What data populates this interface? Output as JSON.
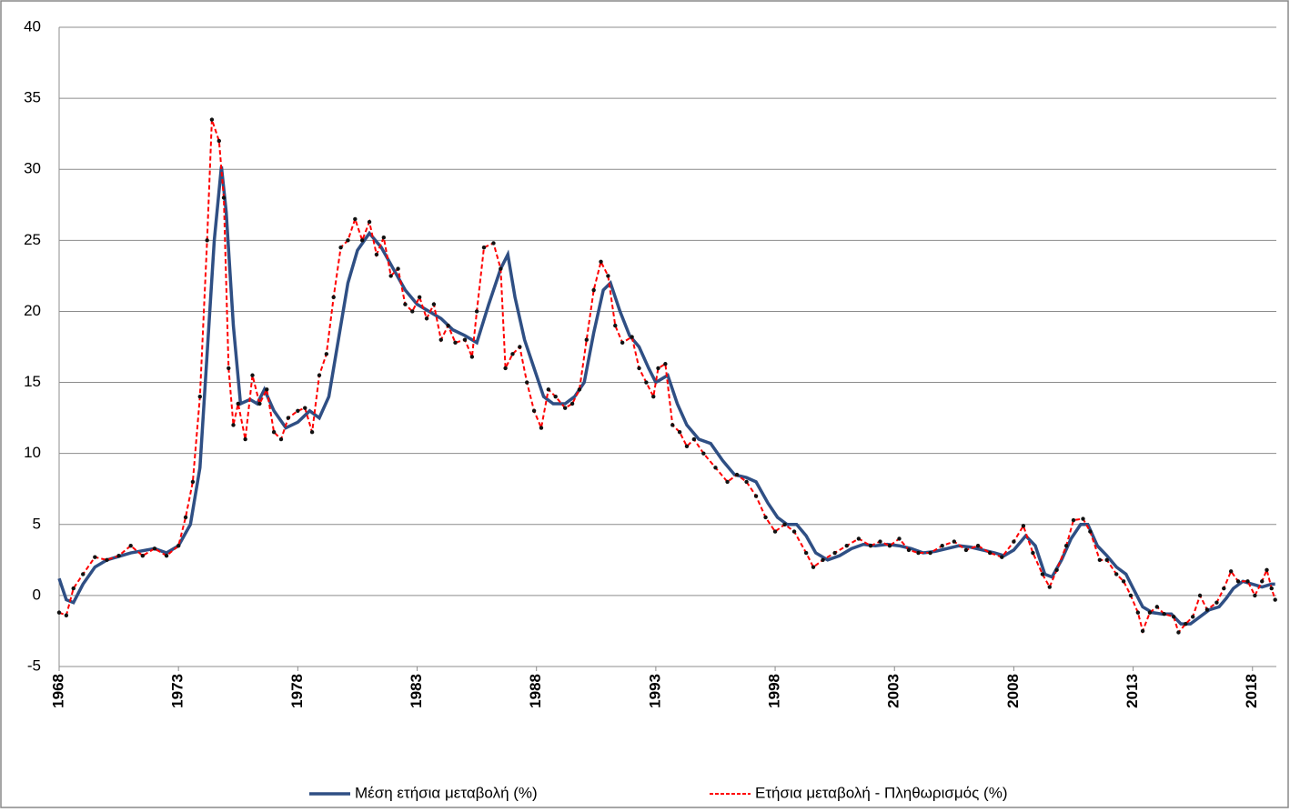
{
  "chart_data": {
    "type": "line",
    "xlim": [
      1968,
      2019
    ],
    "xticks": [
      1968,
      1973,
      1978,
      1983,
      1988,
      1993,
      1998,
      2003,
      2008,
      2013,
      2018
    ],
    "ylim": [
      -5,
      40
    ],
    "yticks": [
      -5,
      0,
      5,
      10,
      15,
      20,
      25,
      30,
      35,
      40
    ],
    "grid": true,
    "series": [
      {
        "name": "Μέση ετήσια μεταβολή (%)",
        "color": "#2f4f84",
        "style": "solid",
        "x": [
          1968.0,
          1968.3,
          1968.6,
          1969.0,
          1969.5,
          1970.0,
          1971.0,
          1972.0,
          1972.5,
          1973.0,
          1973.5,
          1973.9,
          1974.2,
          1974.5,
          1974.8,
          1975.0,
          1975.3,
          1975.6,
          1976.0,
          1976.3,
          1976.6,
          1977.0,
          1977.5,
          1978.0,
          1978.5,
          1978.9,
          1979.3,
          1979.7,
          1980.1,
          1980.5,
          1981.0,
          1981.5,
          1982.0,
          1982.5,
          1983.0,
          1983.5,
          1984.0,
          1984.5,
          1985.0,
          1985.5,
          1986.0,
          1986.5,
          1986.8,
          1987.1,
          1987.5,
          1987.9,
          1988.3,
          1988.7,
          1989.2,
          1989.6,
          1990.0,
          1990.4,
          1990.8,
          1991.1,
          1991.5,
          1991.9,
          1992.3,
          1992.7,
          1993.0,
          1993.5,
          1993.9,
          1994.3,
          1994.8,
          1995.3,
          1995.8,
          1996.3,
          1996.8,
          1997.2,
          1997.7,
          1998.1,
          1998.5,
          1998.9,
          1999.3,
          1999.7,
          2000.2,
          2000.7,
          2001.2,
          2001.7,
          2002.2,
          2002.7,
          2003.2,
          2003.7,
          2004.2,
          2004.7,
          2005.2,
          2005.7,
          2006.2,
          2006.7,
          2007.2,
          2007.6,
          2008.0,
          2008.5,
          2008.9,
          2009.3,
          2009.6,
          2010.0,
          2010.4,
          2010.8,
          2011.1,
          2011.5,
          2011.9,
          2012.3,
          2012.7,
          2013.0,
          2013.4,
          2013.8,
          2014.2,
          2014.6,
          2015.0,
          2015.4,
          2015.8,
          2016.2,
          2016.6,
          2016.9,
          2017.2,
          2017.6,
          2018.0,
          2018.4,
          2018.8,
          2018.95
        ],
        "values": [
          1.2,
          -0.3,
          -0.5,
          0.8,
          2,
          2.5,
          3,
          3.3,
          3,
          3.5,
          5,
          9,
          17,
          25,
          30.2,
          27,
          19,
          13.5,
          13.8,
          13.5,
          14.5,
          13,
          11.8,
          12.2,
          13,
          12.5,
          14,
          18,
          22,
          24.3,
          25.5,
          24.5,
          23,
          21.5,
          20.5,
          20,
          19.5,
          18.7,
          18.3,
          17.8,
          20.5,
          23,
          24,
          21,
          18,
          16,
          14,
          13.5,
          13.5,
          14,
          15,
          18.5,
          21.5,
          22,
          20,
          18.3,
          17.5,
          16,
          15,
          15.5,
          13.5,
          12,
          11,
          10.7,
          9.5,
          8.5,
          8.3,
          8,
          6.5,
          5.5,
          5,
          5,
          4.2,
          3,
          2.5,
          2.8,
          3.3,
          3.6,
          3.5,
          3.6,
          3.5,
          3.3,
          3.0,
          3.1,
          3.3,
          3.5,
          3.4,
          3.2,
          3.0,
          2.8,
          3.2,
          4.2,
          3.5,
          1.5,
          1.3,
          2.5,
          4,
          5,
          5,
          3.5,
          2.8,
          2,
          1.5,
          0.5,
          -0.8,
          -1.2,
          -1.3,
          -1.3,
          -2,
          -2,
          -1.5,
          -1,
          -0.8,
          -0.2,
          0.5,
          1.0,
          0.8,
          0.6,
          0.8,
          0.8
        ]
      },
      {
        "name": "Ετήσια μεταβολή - Πληθωρισμός (%)",
        "color": "#ff0000",
        "style": "dashed",
        "x": [
          1968.0,
          1968.3,
          1968.6,
          1969.0,
          1969.5,
          1970.0,
          1970.5,
          1971.0,
          1971.5,
          1972.0,
          1972.5,
          1973.0,
          1973.3,
          1973.6,
          1973.9,
          1974.2,
          1974.4,
          1974.7,
          1974.9,
          1975.1,
          1975.3,
          1975.5,
          1975.8,
          1976.1,
          1976.4,
          1976.7,
          1977.0,
          1977.3,
          1977.6,
          1978.0,
          1978.3,
          1978.6,
          1978.9,
          1979.2,
          1979.5,
          1979.8,
          1980.1,
          1980.4,
          1980.7,
          1981.0,
          1981.3,
          1981.6,
          1981.9,
          1982.2,
          1982.5,
          1982.8,
          1983.1,
          1983.4,
          1983.7,
          1984.0,
          1984.3,
          1984.6,
          1985.0,
          1985.3,
          1985.5,
          1985.8,
          1986.2,
          1986.5,
          1986.7,
          1987.0,
          1987.3,
          1987.6,
          1987.9,
          1988.2,
          1988.5,
          1988.8,
          1989.2,
          1989.5,
          1989.8,
          1990.1,
          1990.4,
          1990.7,
          1991.0,
          1991.3,
          1991.6,
          1992.0,
          1992.3,
          1992.6,
          1992.9,
          1993.1,
          1993.4,
          1993.7,
          1994.0,
          1994.3,
          1994.6,
          1995.0,
          1995.5,
          1996.0,
          1996.4,
          1996.8,
          1997.2,
          1997.6,
          1998.0,
          1998.4,
          1998.8,
          1999.3,
          1999.6,
          2000.0,
          2000.5,
          2001.0,
          2001.5,
          2002.0,
          2002.4,
          2002.8,
          2003.2,
          2003.6,
          2004.0,
          2004.5,
          2005.0,
          2005.5,
          2006.0,
          2006.5,
          2007.0,
          2007.5,
          2008.0,
          2008.4,
          2008.8,
          2009.2,
          2009.5,
          2009.8,
          2010.2,
          2010.5,
          2010.9,
          2011.2,
          2011.6,
          2011.9,
          2012.3,
          2012.6,
          2012.9,
          2013.2,
          2013.4,
          2013.7,
          2014.0,
          2014.3,
          2014.7,
          2014.9,
          2015.2,
          2015.5,
          2015.8,
          2016.1,
          2016.5,
          2016.8,
          2017.1,
          2017.4,
          2017.8,
          2018.1,
          2018.4,
          2018.6,
          2018.8,
          2018.95
        ],
        "values": [
          -1.2,
          -1.4,
          0.5,
          1.5,
          2.7,
          2.5,
          2.8,
          3.5,
          2.8,
          3.3,
          2.8,
          3.5,
          5.5,
          8,
          14,
          25,
          33.5,
          32,
          28,
          16,
          12,
          13.5,
          11,
          15.5,
          13.5,
          14.5,
          11.5,
          11,
          12.5,
          13,
          13.2,
          11.5,
          15.5,
          17,
          21,
          24.5,
          25,
          26.5,
          25,
          26.3,
          24,
          25.2,
          22.5,
          23,
          20.5,
          20,
          21,
          19.5,
          20.5,
          18,
          19,
          17.8,
          18,
          16.8,
          20,
          24.5,
          24.8,
          23,
          16,
          17,
          17.5,
          15,
          13,
          11.8,
          14.5,
          14,
          13.2,
          13.5,
          14.5,
          18,
          21.5,
          23.5,
          22.5,
          19,
          17.8,
          18.2,
          16,
          15,
          14,
          16,
          16.3,
          12,
          11.5,
          10.5,
          11,
          10,
          9,
          8,
          8.5,
          8,
          7,
          5.5,
          4.5,
          5,
          4.5,
          3,
          2,
          2.5,
          3,
          3.5,
          4,
          3.5,
          3.8,
          3.5,
          4,
          3.2,
          3.0,
          3,
          3.5,
          3.8,
          3.2,
          3.5,
          3,
          2.7,
          3.8,
          4.9,
          3,
          1.5,
          0.6,
          1.8,
          3.5,
          5.3,
          5.4,
          4.5,
          2.5,
          2.5,
          1.5,
          1,
          0,
          -1.2,
          -2.5,
          -1.2,
          -0.8,
          -1.3,
          -1.5,
          -2.6,
          -2,
          -1.5,
          0,
          -1,
          -0.5,
          0.5,
          1.7,
          1,
          1,
          0,
          1,
          1.8,
          0.5,
          -0.3
        ]
      }
    ]
  }
}
